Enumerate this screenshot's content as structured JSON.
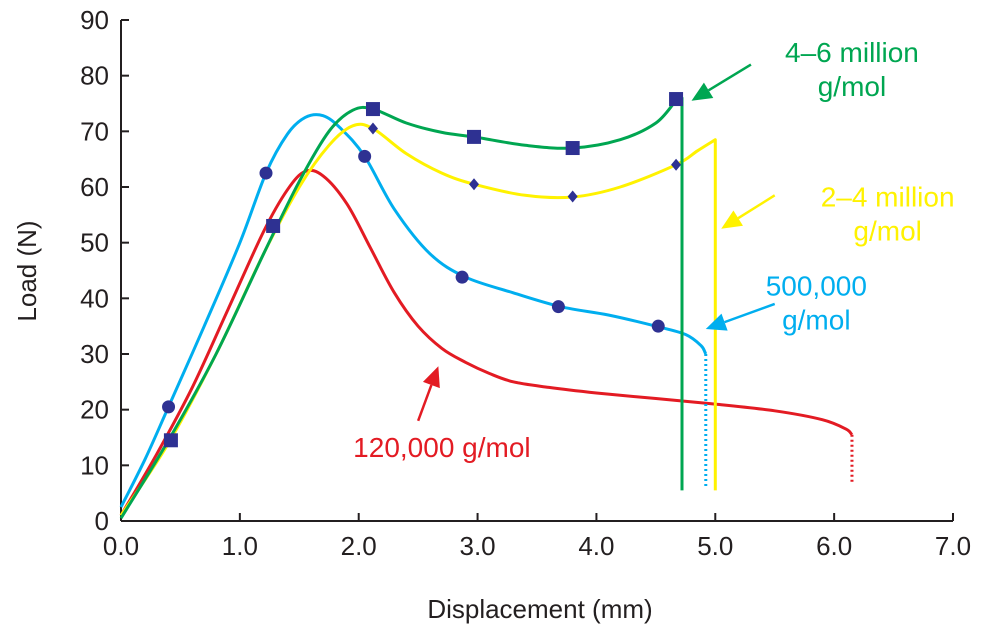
{
  "chart_data": {
    "type": "line",
    "xlabel": "Displacement (mm)",
    "ylabel": "Load (N)",
    "xlim": [
      0,
      7
    ],
    "ylim": [
      0,
      90
    ],
    "x_ticks": [
      0,
      1,
      2,
      3,
      4,
      5,
      6,
      7
    ],
    "x_tick_labels": [
      "0.0",
      "1.0",
      "2.0",
      "3.0",
      "4.0",
      "5.0",
      "6.0",
      "7.0"
    ],
    "y_ticks": [
      0,
      10,
      20,
      30,
      40,
      50,
      60,
      70,
      80,
      90
    ],
    "y_tick_labels": [
      "0",
      "10",
      "20",
      "30",
      "40",
      "50",
      "60",
      "70",
      "80",
      "90"
    ],
    "grid": false,
    "series": [
      {
        "name": "120,000 g/mol",
        "label_lines": [
          "120,000 g/mol"
        ],
        "color": "#e31b23",
        "marker": "none",
        "points": [
          [
            0.0,
            1.0
          ],
          [
            0.3,
            12.0
          ],
          [
            0.6,
            24.0
          ],
          [
            0.9,
            38.0
          ],
          [
            1.2,
            52.0
          ],
          [
            1.4,
            59.5
          ],
          [
            1.55,
            62.8
          ],
          [
            1.7,
            62.0
          ],
          [
            1.9,
            57.0
          ],
          [
            2.1,
            49.0
          ],
          [
            2.3,
            41.0
          ],
          [
            2.5,
            35.0
          ],
          [
            2.7,
            31.0
          ],
          [
            2.9,
            28.5
          ],
          [
            3.1,
            26.5
          ],
          [
            3.3,
            25.0
          ],
          [
            3.6,
            24.0
          ],
          [
            4.0,
            23.0
          ],
          [
            4.5,
            22.0
          ],
          [
            5.0,
            21.0
          ],
          [
            5.5,
            19.8
          ],
          [
            5.9,
            18.2
          ],
          [
            6.1,
            16.5
          ],
          [
            6.15,
            15.5
          ]
        ],
        "break_to": [
          6.15,
          7.0
        ],
        "annotation": {
          "text_at": [
            2.7,
            11.5
          ],
          "arrow_from": [
            2.5,
            18.0
          ],
          "arrow_to": [
            2.67,
            27.8
          ]
        }
      },
      {
        "name": "500,000 g/mol",
        "label_lines": [
          "500,000",
          "g/mol"
        ],
        "color": "#00aeef",
        "marker": "circle",
        "points": [
          [
            0.0,
            2.5
          ],
          [
            0.2,
            11.0
          ],
          [
            0.4,
            20.5
          ],
          [
            0.7,
            35.0
          ],
          [
            1.0,
            50.0
          ],
          [
            1.22,
            62.5
          ],
          [
            1.4,
            69.5
          ],
          [
            1.55,
            72.5
          ],
          [
            1.7,
            72.8
          ],
          [
            1.85,
            70.5
          ],
          [
            2.05,
            65.5
          ],
          [
            2.3,
            56.0
          ],
          [
            2.6,
            48.0
          ],
          [
            2.9,
            43.8
          ],
          [
            3.3,
            41.0
          ],
          [
            3.7,
            38.5
          ],
          [
            4.1,
            37.0
          ],
          [
            4.5,
            35.0
          ],
          [
            4.75,
            33.5
          ],
          [
            4.88,
            31.5
          ],
          [
            4.92,
            30.0
          ]
        ],
        "markers": [
          [
            0.4,
            20.5
          ],
          [
            1.22,
            62.5
          ],
          [
            2.05,
            65.5
          ],
          [
            2.87,
            43.8
          ],
          [
            3.68,
            38.5
          ],
          [
            4.52,
            35.0
          ]
        ],
        "break_to": [
          4.92,
          6.0
        ],
        "annotation": {
          "text_at": [
            5.85,
            40.5
          ],
          "arrow_from": [
            5.5,
            39.0
          ],
          "arrow_to": [
            4.92,
            34.5
          ]
        }
      },
      {
        "name": "2–4 million g/mol",
        "label_lines": [
          "2–4 million",
          "g/mol"
        ],
        "color": "#fff200",
        "marker": "diamond",
        "points": [
          [
            0.0,
            1.0
          ],
          [
            0.4,
            14.0
          ],
          [
            0.8,
            30.0
          ],
          [
            1.2,
            48.0
          ],
          [
            1.5,
            60.0
          ],
          [
            1.75,
            67.5
          ],
          [
            1.95,
            71.0
          ],
          [
            2.12,
            70.5
          ],
          [
            2.4,
            66.0
          ],
          [
            2.7,
            62.5
          ],
          [
            2.97,
            60.5
          ],
          [
            3.4,
            58.5
          ],
          [
            3.8,
            58.2
          ],
          [
            4.2,
            60.0
          ],
          [
            4.67,
            64.0
          ],
          [
            4.85,
            66.5
          ],
          [
            5.0,
            68.5
          ],
          [
            5.0,
            5.5
          ]
        ],
        "markers": [
          [
            2.12,
            70.5
          ],
          [
            2.97,
            60.5
          ],
          [
            3.8,
            58.3
          ],
          [
            4.67,
            64.0
          ]
        ],
        "annotation": {
          "text_at": [
            6.45,
            56.5
          ],
          "arrow_from": [
            5.5,
            58.5
          ],
          "arrow_to": [
            5.05,
            52.5
          ]
        }
      },
      {
        "name": "4–6 million g/mol",
        "label_lines": [
          "4–6 million",
          "g/mol"
        ],
        "color": "#00a651",
        "marker": "square",
        "points": [
          [
            0.0,
            0.5
          ],
          [
            0.4,
            14.5
          ],
          [
            0.8,
            30.0
          ],
          [
            1.2,
            48.0
          ],
          [
            1.5,
            61.0
          ],
          [
            1.75,
            70.0
          ],
          [
            1.95,
            73.8
          ],
          [
            2.12,
            74.0
          ],
          [
            2.4,
            71.5
          ],
          [
            2.7,
            69.8
          ],
          [
            2.97,
            69.0
          ],
          [
            3.4,
            67.5
          ],
          [
            3.8,
            67.0
          ],
          [
            4.2,
            68.5
          ],
          [
            4.5,
            71.5
          ],
          [
            4.67,
            75.5
          ],
          [
            4.72,
            76.0
          ],
          [
            4.72,
            5.5
          ]
        ],
        "markers": [
          [
            0.42,
            14.5
          ],
          [
            1.28,
            53.0
          ],
          [
            2.12,
            74.0
          ],
          [
            2.97,
            69.0
          ],
          [
            3.8,
            67.0
          ],
          [
            4.67,
            75.8
          ]
        ],
        "annotation": {
          "text_at": [
            6.15,
            82.5
          ],
          "arrow_from": [
            5.3,
            82.0
          ],
          "arrow_to": [
            4.8,
            75.5
          ]
        }
      }
    ]
  }
}
